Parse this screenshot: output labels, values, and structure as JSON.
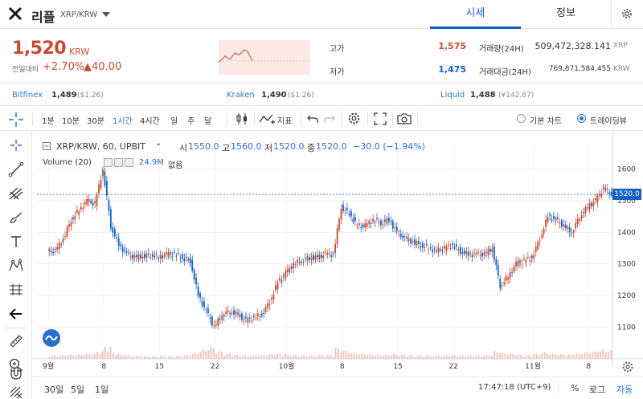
{
  "header": {
    "coin_name": "리플",
    "pair": "XRP/KRW",
    "tabs": [
      {
        "label": "시세",
        "active": true
      },
      {
        "label": "정보",
        "active": false
      }
    ]
  },
  "price": {
    "current": "1,520",
    "unit": "KRW",
    "change_label": "전일대비",
    "change_rate": "+2.70%",
    "change_amount": "▲40.00",
    "stats": {
      "high_label": "고가",
      "high": "1,575",
      "low_label": "저가",
      "low": "1,475",
      "volume_label": "거래량(24H)",
      "volume": "509,472,328.141",
      "volume_unit": "XRP",
      "value_label": "거래대금(24H)",
      "value": "769,871,584,455",
      "value_unit": "KRW"
    }
  },
  "exchanges": [
    {
      "name": "Bitfinex",
      "price": "1,489",
      "sub": "($1.26)"
    },
    {
      "name": "Kraken",
      "price": "1,490",
      "sub": "($1.26)"
    },
    {
      "name": "Liquid",
      "price": "1,488",
      "sub": "(¥142.87)"
    }
  ],
  "toolbar": {
    "timeframes": [
      "1분",
      "10분",
      "30분",
      "1시간",
      "4시간",
      "일",
      "주",
      "달"
    ],
    "active_timeframe": "1시간",
    "indicator_label": "지표",
    "chart_modes": [
      {
        "label": "기본 차트",
        "selected": false
      },
      {
        "label": "트레이딩뷰",
        "selected": true
      }
    ]
  },
  "legend": {
    "symbol": "XRP/KRW, 60, UPBIT",
    "open_label": "시",
    "open": "1550.0",
    "high_label": "고",
    "high": "1560.0",
    "low_label": "저",
    "low": "1520.0",
    "close_label": "종",
    "close": "1520.0",
    "change": "−30.0 (−1.94%)",
    "volume_label": "Volume (20)",
    "volume_value": "24.9M",
    "volume_extra": "없음"
  },
  "colors": {
    "up": "#c84a31",
    "down": "#1261c4",
    "accent": "#115dcb",
    "volume": "#f2c5bd"
  },
  "chart_data": {
    "type": "line",
    "subtype": "candlestick",
    "y_ticks": [
      1100,
      1200,
      1300,
      1400,
      1500,
      1600
    ],
    "ylim": [
      1045,
      1650
    ],
    "last_price": 1520,
    "last_price_label": "1520.0",
    "x_ticks": [
      "9월",
      "8",
      "15",
      "22",
      "10월",
      "8",
      "15",
      "22",
      "11월",
      "8"
    ],
    "x_range": [
      "2021-09-01",
      "2021-11-10"
    ],
    "series": [
      {
        "x": [
          "2021-09-01",
          "2021-09-02",
          "2021-09-03",
          "2021-09-04",
          "2021-09-05",
          "2021-09-06",
          "2021-09-07",
          "2021-09-08",
          "2021-09-09",
          "2021-09-10",
          "2021-09-11",
          "2021-09-12",
          "2021-09-13",
          "2021-09-14",
          "2021-09-15",
          "2021-09-16",
          "2021-09-17",
          "2021-09-18",
          "2021-09-19",
          "2021-09-20",
          "2021-09-21",
          "2021-09-22",
          "2021-09-23",
          "2021-09-24",
          "2021-09-25",
          "2021-09-26",
          "2021-09-27",
          "2021-09-28",
          "2021-09-29",
          "2021-09-30",
          "2021-10-01",
          "2021-10-02",
          "2021-10-03",
          "2021-10-04",
          "2021-10-05",
          "2021-10-06",
          "2021-10-07",
          "2021-10-08",
          "2021-10-09",
          "2021-10-10",
          "2021-10-11",
          "2021-10-12",
          "2021-10-13",
          "2021-10-14",
          "2021-10-15",
          "2021-10-16",
          "2021-10-17",
          "2021-10-18",
          "2021-10-19",
          "2021-10-20",
          "2021-10-21",
          "2021-10-22",
          "2021-10-23",
          "2021-10-24",
          "2021-10-25",
          "2021-10-26",
          "2021-10-27",
          "2021-10-28",
          "2021-10-29",
          "2021-10-30",
          "2021-10-31",
          "2021-11-01",
          "2021-11-02",
          "2021-11-03",
          "2021-11-04",
          "2021-11-05",
          "2021-11-06",
          "2021-11-07",
          "2021-11-08",
          "2021-11-09",
          "2021-11-10"
        ],
        "y": [
          1340,
          1380,
          1440,
          1470,
          1500,
          1490,
          1600,
          1420,
          1360,
          1330,
          1320,
          1325,
          1330,
          1320,
          1330,
          1330,
          1320,
          1310,
          1200,
          1150,
          1100,
          1140,
          1150,
          1140,
          1120,
          1130,
          1140,
          1180,
          1240,
          1270,
          1300,
          1310,
          1320,
          1320,
          1330,
          1330,
          1480,
          1460,
          1420,
          1420,
          1440,
          1430,
          1440,
          1400,
          1380,
          1370,
          1360,
          1350,
          1340,
          1350,
          1360,
          1340,
          1330,
          1330,
          1330,
          1350,
          1230,
          1260,
          1300,
          1310,
          1320,
          1380,
          1450,
          1440,
          1420,
          1400,
          1450,
          1480,
          1500,
          1540,
          1520
        ]
      }
    ],
    "volume_y": [
      8,
      9,
      10,
      10,
      11,
      12,
      18,
      30,
      14,
      10,
      8,
      7,
      6,
      6,
      7,
      6,
      7,
      9,
      14,
      22,
      28,
      18,
      12,
      10,
      9,
      8,
      9,
      10,
      12,
      12,
      10,
      9,
      8,
      8,
      9,
      9,
      26,
      20,
      14,
      12,
      10,
      9,
      10,
      11,
      10,
      9,
      8,
      8,
      7,
      8,
      9,
      9,
      8,
      7,
      8,
      9,
      18,
      14,
      12,
      10,
      9,
      12,
      16,
      12,
      11,
      10,
      13,
      16,
      18,
      22,
      20
    ]
  },
  "bottom": {
    "ranges": [
      "30일",
      "5일",
      "1일"
    ],
    "time": "17:47:18 (UTC+9)",
    "percent_label": "%",
    "log_label": "로그",
    "auto_label": "자동"
  }
}
